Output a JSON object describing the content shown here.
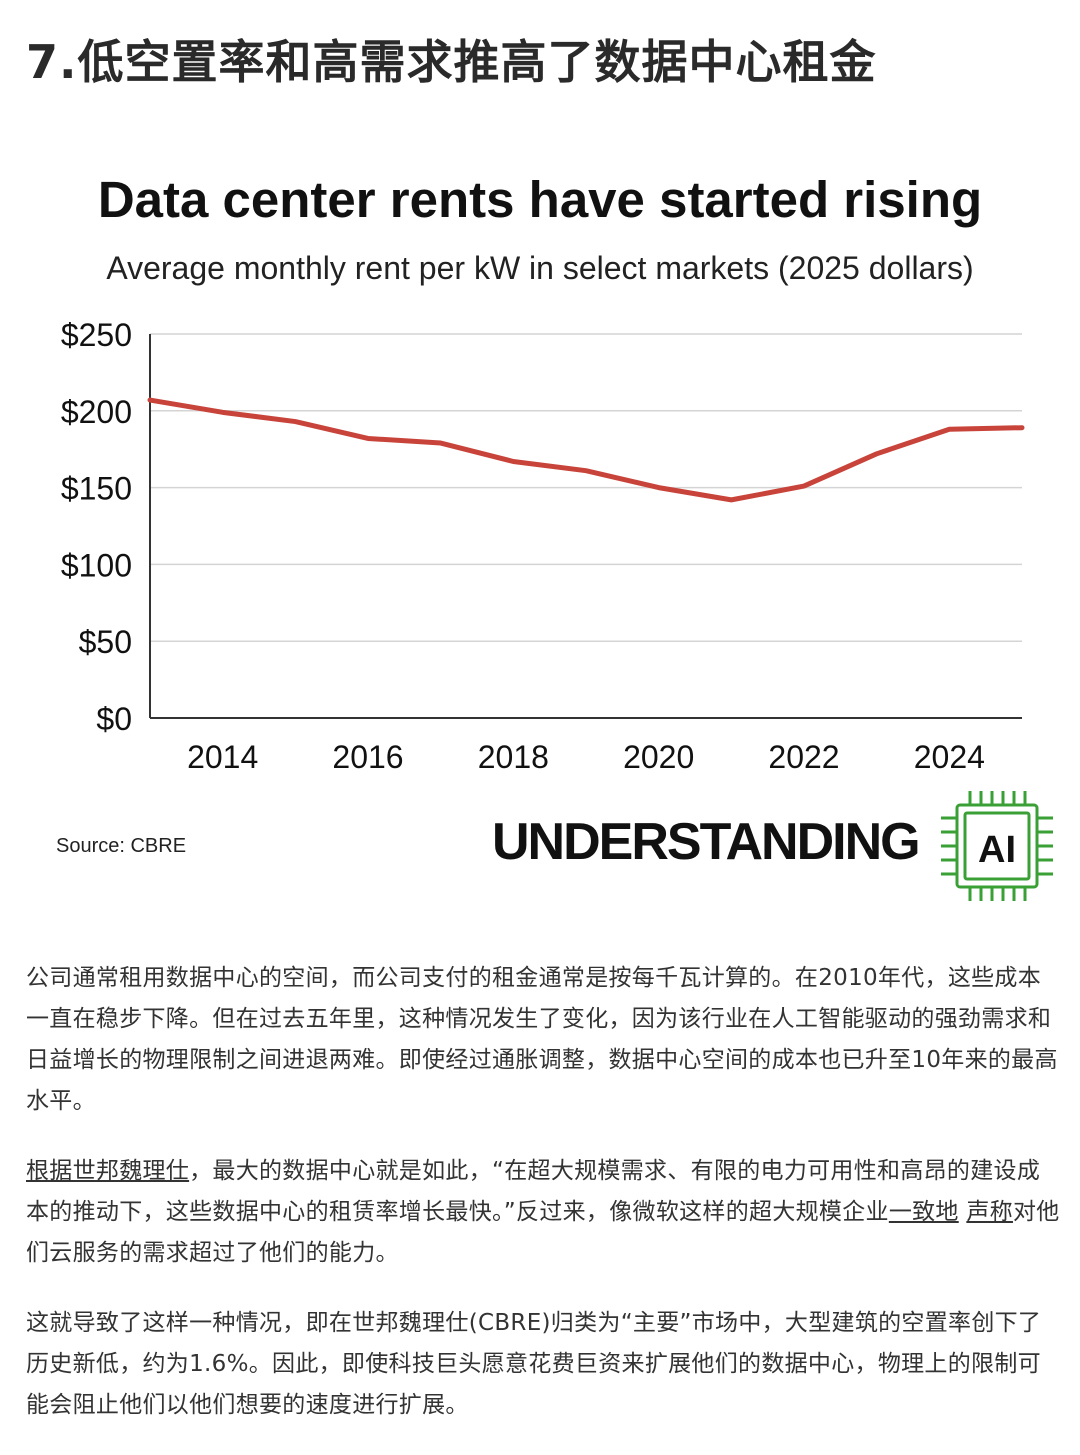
{
  "page": {
    "heading": "7.低空置率和高需求推高了数据中心租金"
  },
  "chart_data": {
    "type": "line",
    "title": "Data center rents have started rising",
    "subtitle": "Average monthly rent per kW in select markets (2025 dollars)",
    "xlabel": "",
    "ylabel": "",
    "x": [
      2013,
      2014,
      2015,
      2016,
      2017,
      2018,
      2019,
      2020,
      2021,
      2022,
      2023,
      2024,
      2025
    ],
    "series": [
      {
        "values": [
          207,
          199,
          193,
          182,
          179,
          167,
          161,
          150,
          142,
          151,
          172,
          188,
          189
        ]
      }
    ],
    "xlim": [
      2013,
      2025
    ],
    "ylim": [
      0,
      250
    ],
    "x_ticks": [
      2014,
      2016,
      2018,
      2020,
      2022,
      2024
    ],
    "x_tick_labels": [
      "2014",
      "2016",
      "2018",
      "2020",
      "2022",
      "2024"
    ],
    "y_ticks": [
      0,
      50,
      100,
      150,
      200,
      250
    ],
    "y_tick_labels": [
      "$0",
      "$50",
      "$100",
      "$150",
      "$200",
      "$250"
    ],
    "grid": true,
    "line_color": "#c8443a",
    "source": "Source: CBRE"
  },
  "brand": {
    "name": "UNDERSTANDING",
    "badge": "AI",
    "icon": "chip-icon",
    "color": "#3aa035"
  },
  "article": {
    "p1": "公司通常租用数据中心的空间，而公司支付的租金通常是按每千瓦计算的。在2010年代，这些成本一直在稳步下降。但在过去五年里，这种情况发生了变化，因为该行业在人工智能驱动的强劲需求和日益增长的物理限制之间进退两难。即使经过通胀调整，数据中心空间的成本也已升至10年来的最高水平。",
    "p2_link1": "根据世邦魏理仕",
    "p2_text1": "，最大的数据中心就是如此，“在超大规模需求、有限的电力可用性和高昂的建设成本的推动下，这些数据中心的租赁率增长最快。”反过来，像微软这样的超大规模企业",
    "p2_link2": "一致地",
    "p2_space": " ",
    "p2_link3": "声称",
    "p2_text2": "对他们云服务的需求超过了他们的能力。",
    "p3": "这就导致了这样一种情况，即在世邦魏理仕(CBRE)归类为“主要”市场中，大型建筑的空置率创下了历史新低，约为1.6%。因此，即使科技巨头愿意花费巨资来扩展他们的数据中心，物理上的限制可能会阻止他们以他们想要的速度进行扩展。"
  }
}
